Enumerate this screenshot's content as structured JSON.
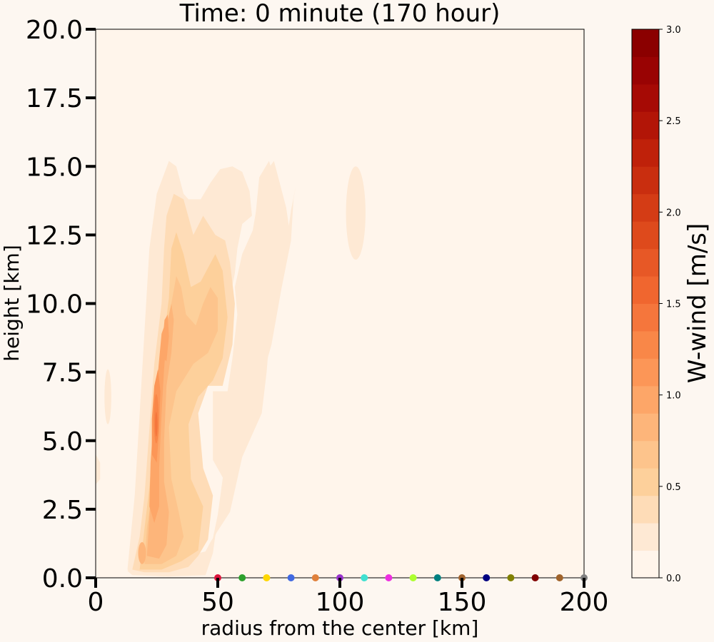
{
  "chart_data": {
    "type": "contour",
    "title": "Time: 0 minute (170 hour)",
    "xlabel": "radius from the center [km]",
    "ylabel": "height [km]",
    "xlim": [
      0,
      200
    ],
    "ylim": [
      0,
      20
    ],
    "x_ticks": [
      "0",
      "50",
      "100",
      "150",
      "200"
    ],
    "y_ticks": [
      "0.0",
      "2.5",
      "5.0",
      "7.5",
      "10.0",
      "12.5",
      "15.0",
      "17.5",
      "20.0"
    ],
    "colorbar": {
      "label": "W-wind [m/s]",
      "range": [
        0,
        3.0
      ],
      "ticks": [
        "0.0",
        "0.5",
        "1.0",
        "1.5",
        "2.0",
        "2.5",
        "3.0"
      ],
      "levels": [
        0.0,
        0.15,
        0.3,
        0.45,
        0.6,
        0.75,
        0.9,
        1.05,
        1.2,
        1.35,
        1.5,
        1.65,
        1.8,
        1.95,
        2.1,
        2.25,
        2.4,
        2.55,
        2.7,
        2.85,
        3.0
      ],
      "colors": [
        "#fff5eb",
        "#fee9d4",
        "#fedcb7",
        "#fdd09b",
        "#fdc48c",
        "#fdb57a",
        "#fda668",
        "#fc9657",
        "#f98748",
        "#f5763c",
        "#f0662f",
        "#e75826",
        "#de4a1c",
        "#d43c15",
        "#c92e0f",
        "#bf210a",
        "#b21507",
        "#a60a05",
        "#990303",
        "#8b0000"
      ]
    },
    "features": [
      {
        "name": "main-updraft-column",
        "x_range": [
          14,
          43
        ],
        "y_range": [
          0.2,
          15.0
        ],
        "max_w": 1.6,
        "max_at": {
          "x": 25,
          "y": 6.0
        }
      },
      {
        "name": "upper-secondary-maximum",
        "x_range": [
          26,
          33
        ],
        "y_range": [
          7.5,
          10.0
        ],
        "max_w": 1.2
      },
      {
        "name": "mid-level-outflow-lobe",
        "x_range": [
          34,
          75
        ],
        "y_range": [
          2.0,
          15.2
        ],
        "max_w": 0.9
      },
      {
        "name": "isolated-upper-cell",
        "x_range": [
          101,
          112
        ],
        "y_range": [
          11.5,
          15.0
        ],
        "max_w": 0.3
      },
      {
        "name": "small-low-cell-left",
        "x_range": [
          2,
          7
        ],
        "y_range": [
          6.0,
          7.6
        ],
        "max_w": 0.3
      }
    ],
    "markers": {
      "y": 0.0,
      "x": [
        50,
        60,
        70,
        80,
        90,
        100,
        110,
        120,
        130,
        140,
        150,
        160,
        170,
        180,
        190,
        200
      ],
      "colors": [
        "#dc143c",
        "#2ca02c",
        "#ffd700",
        "#4169e1",
        "#e0803a",
        "#9932cc",
        "#40e0d0",
        "#ee2ee0",
        "#adff2f",
        "#008080",
        "#a0622d",
        "#000080",
        "#808000",
        "#800000",
        "#a0632a",
        "#808080"
      ]
    }
  }
}
